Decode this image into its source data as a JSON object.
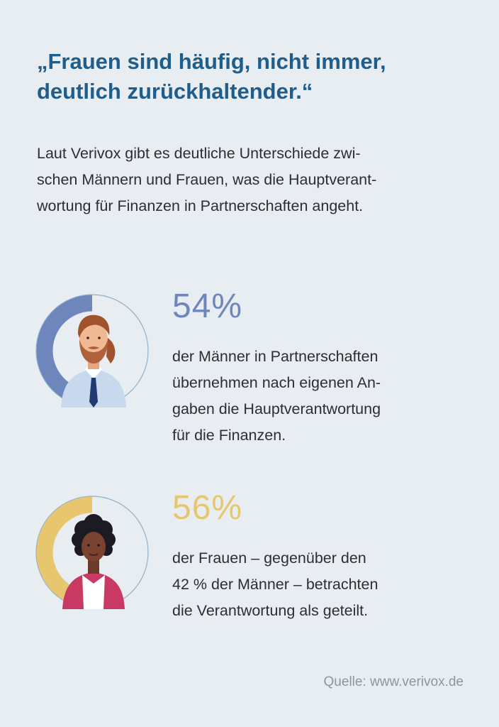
{
  "headline": {
    "line1": "„Frauen sind häufig, nicht immer,",
    "line2": "deutlich zurückhaltender.“"
  },
  "intro": {
    "line1": "Laut Verivox gibt es deutliche Unterschiede zwi-",
    "line2": "schen Männern und Frauen, was die Hauptverant-",
    "line3": "wortung für Finanzen in Partnerschaften angeht."
  },
  "stats": [
    {
      "percent_label": "54%",
      "lines": [
        "der Männer in Partnerschaften",
        "übernehmen nach eigenen An-",
        "gaben die Hauptverantwortung",
        "für die Finanzen."
      ]
    },
    {
      "percent_label": "56%",
      "lines": [
        "der Frauen – gegenüber den",
        "42 % der Männer – betrachten",
        "die Verantwortung als geteilt."
      ]
    }
  ],
  "source": "Quelle: www.verivox.de",
  "colors": {
    "headline": "#1f5d8a",
    "men": "#6f86bd",
    "women": "#e8c670",
    "track": "#8fb0c9",
    "background": "#e8edf2"
  },
  "icons": [
    "man-avatar-icon",
    "woman-avatar-icon"
  ],
  "chart_data": [
    {
      "type": "pie",
      "subtype": "donut",
      "values": [
        54,
        46
      ],
      "data_labels": [
        "54%"
      ]
    },
    {
      "type": "pie",
      "subtype": "donut",
      "values": [
        56,
        44
      ],
      "data_labels": [
        "56%"
      ]
    }
  ]
}
